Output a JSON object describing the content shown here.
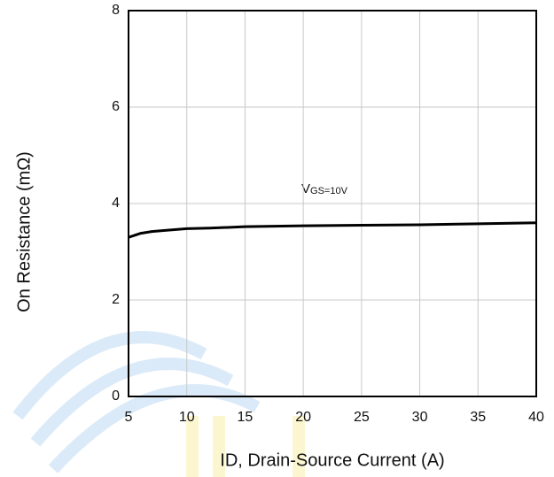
{
  "chart_data": {
    "type": "line",
    "x_label": "ID, Drain-Source Current (A)",
    "y_label": "On Resistance (mΩ)",
    "annotation": [
      "V",
      "GS=10V"
    ],
    "x": [
      5,
      6,
      7,
      8,
      10,
      12,
      15,
      20,
      25,
      30,
      35,
      40
    ],
    "series": [
      {
        "color": "#000000",
        "values": [
          3.3,
          3.38,
          3.42,
          3.44,
          3.48,
          3.49,
          3.52,
          3.54,
          3.55,
          3.56,
          3.58,
          3.6
        ]
      }
    ],
    "xlim": [
      5,
      40
    ],
    "xticks": [
      5,
      10,
      15,
      20,
      25,
      30,
      35,
      40
    ],
    "ylim": [
      0,
      8
    ],
    "yticks": [
      0,
      2,
      4,
      6,
      8
    ],
    "grid": true
  }
}
